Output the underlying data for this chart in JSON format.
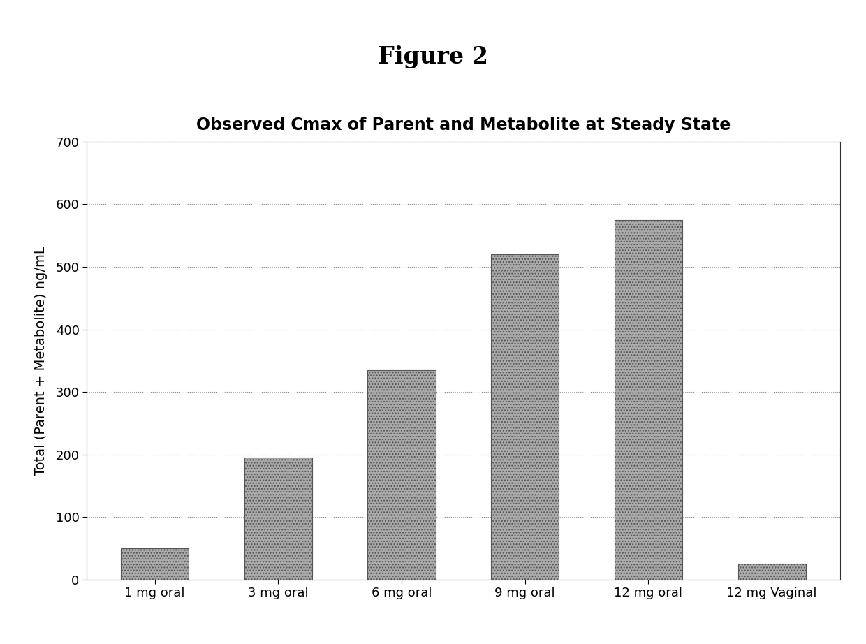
{
  "title": "Observed Cmax of Parent and Metabolite at Steady State",
  "figure_title": "Figure 2",
  "categories": [
    "1 mg oral",
    "3 mg oral",
    "6 mg oral",
    "9 mg oral",
    "12 mg oral",
    "12 mg Vaginal"
  ],
  "values": [
    50,
    195,
    335,
    520,
    575,
    25
  ],
  "bar_color": "#aaaaaa",
  "bar_edgecolor": "#555555",
  "ylabel": "Total (Parent + Metabolite) ng/mL",
  "ylim": [
    0,
    700
  ],
  "yticks": [
    0,
    100,
    200,
    300,
    400,
    500,
    600,
    700
  ],
  "grid_color": "#888888",
  "background_color": "#ffffff",
  "plot_bg_color": "#ffffff",
  "title_fontsize": 17,
  "figure_title_fontsize": 24,
  "ylabel_fontsize": 14,
  "tick_fontsize": 13,
  "bar_width": 0.55
}
